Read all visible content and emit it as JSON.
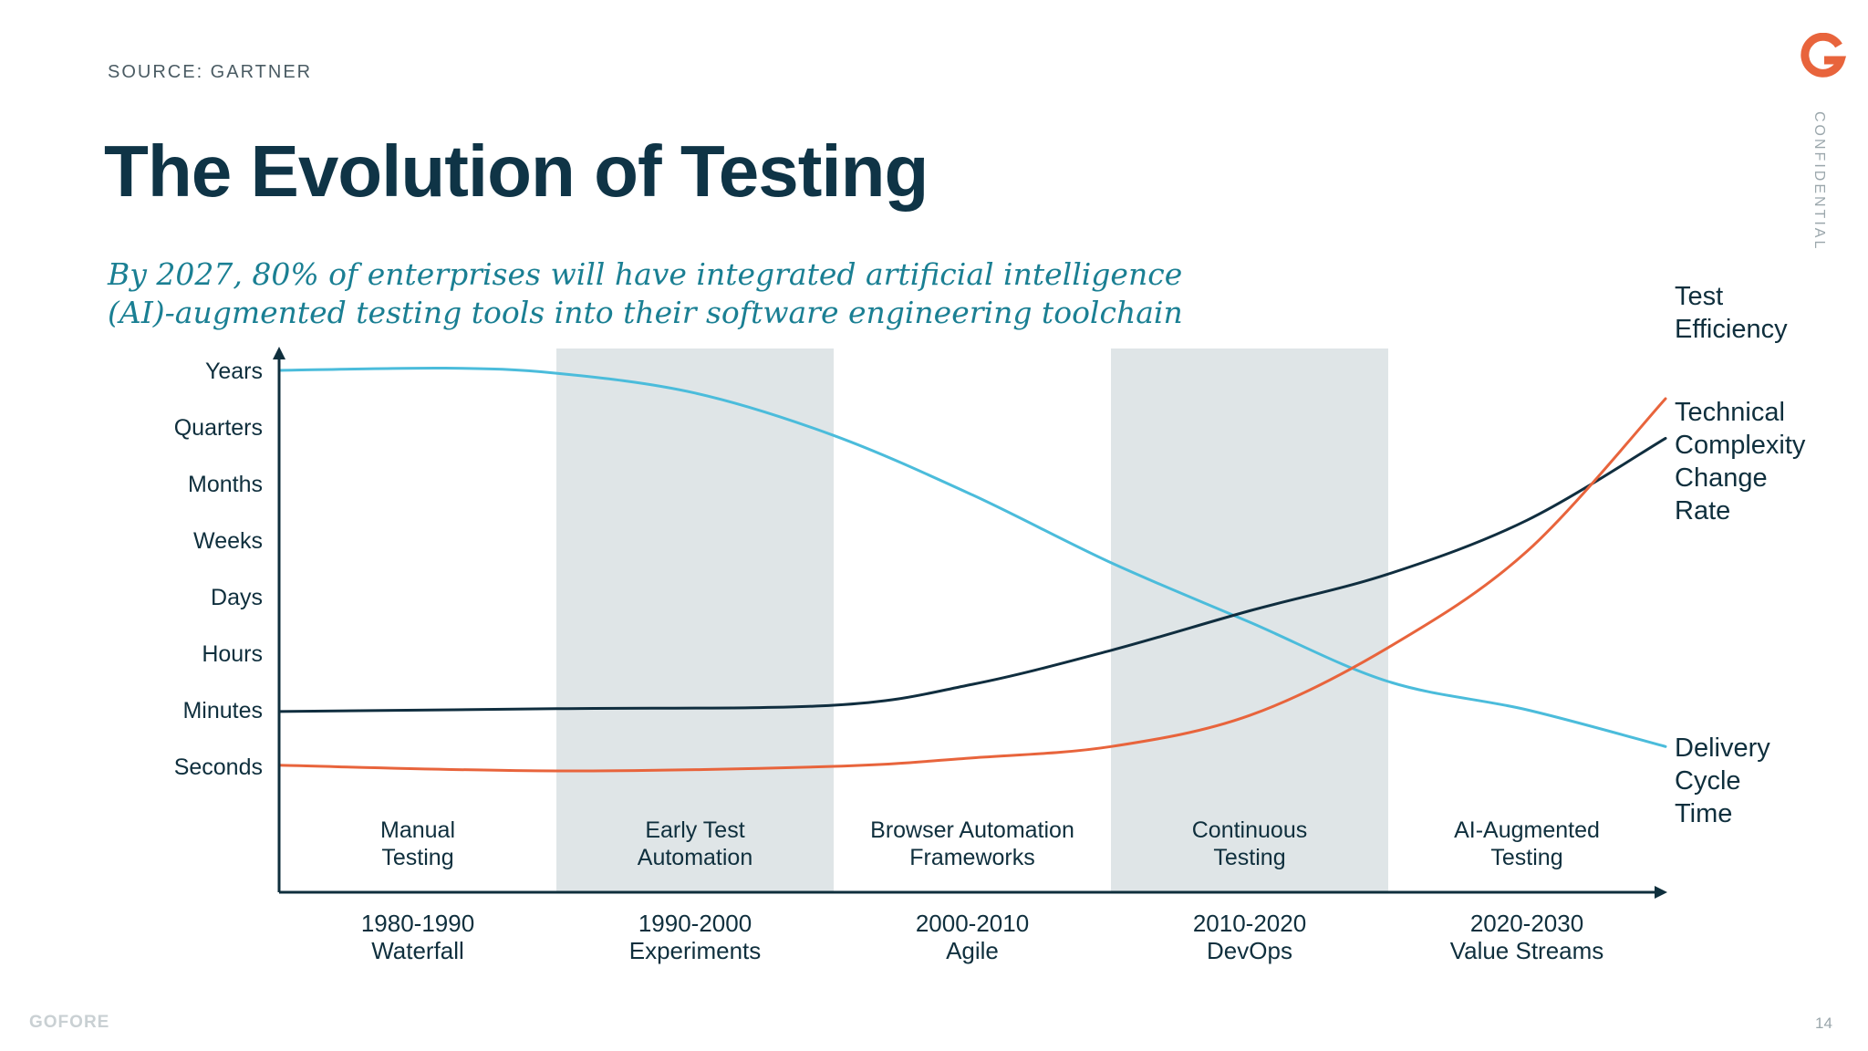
{
  "source": "SOURCE: GARTNER",
  "title": "The Evolution of Testing",
  "subtitle": "By 2027, 80% of enterprises will have integrated artificial intelligence (AI)-augmented testing tools into their software engineering toolchain",
  "confidential": "CONFIDENTIAL",
  "brand": "GOFORE",
  "page_number": "14",
  "colors": {
    "title": "#0f3446",
    "subtitle": "#1a7f93",
    "band": "#dfe5e7",
    "test_efficiency": "#e8643c",
    "technical_complexity": "#102e3f",
    "delivery_cycle_time": "#4bbcdb",
    "axis": "#0f2f3d",
    "logo": "#e8643c"
  },
  "chart_data": {
    "type": "line",
    "title": "The Evolution of Testing",
    "y_categories": [
      "Seconds",
      "Minutes",
      "Hours",
      "Days",
      "Weeks",
      "Months",
      "Quarters",
      "Years"
    ],
    "x_categories": [
      "1980-1990",
      "1990-2000",
      "2000-2010",
      "2010-2020",
      "2020-2030"
    ],
    "x_sublabels": [
      "Waterfall",
      "Experiments",
      "Agile",
      "DevOps",
      "Value Streams"
    ],
    "era_labels": [
      [
        "Manual",
        "Testing"
      ],
      [
        "Early Test",
        "Automation"
      ],
      [
        "Browser Automation",
        "Frameworks"
      ],
      [
        "Continuous",
        "Testing"
      ],
      [
        "AI-Augmented",
        "Testing"
      ]
    ],
    "shaded_eras": [
      1,
      3
    ],
    "x_range": [
      0,
      5
    ],
    "y_range": [
      0,
      7
    ],
    "series": [
      {
        "name": "Delivery Cycle Time",
        "label_lines": [
          "Delivery",
          "Cycle",
          "Time"
        ],
        "color_key": "delivery_cycle_time",
        "points": [
          [
            0,
            7
          ],
          [
            0.6,
            7.04
          ],
          [
            1,
            6.95
          ],
          [
            1.5,
            6.6
          ],
          [
            2,
            5.85
          ],
          [
            2.5,
            4.8
          ],
          [
            3,
            3.6
          ],
          [
            3.5,
            2.55
          ],
          [
            4,
            1.5
          ],
          [
            4.5,
            1
          ],
          [
            5,
            0.35
          ]
        ]
      },
      {
        "name": "Technical Complexity Change Rate",
        "label_lines": [
          "Technical",
          "Complexity",
          "Change",
          "Rate"
        ],
        "color_key": "technical_complexity",
        "points": [
          [
            0,
            0.97
          ],
          [
            1,
            1.02
          ],
          [
            2,
            1.08
          ],
          [
            2.5,
            1.45
          ],
          [
            3,
            2.05
          ],
          [
            3.5,
            2.75
          ],
          [
            4,
            3.4
          ],
          [
            4.5,
            4.35
          ],
          [
            5,
            5.8
          ]
        ]
      },
      {
        "name": "Test Efficiency",
        "label_lines": [
          "Test",
          "Efficiency"
        ],
        "color_key": "test_efficiency",
        "points": [
          [
            0,
            0.02
          ],
          [
            1,
            -0.08
          ],
          [
            2,
            0
          ],
          [
            2.5,
            0.15
          ],
          [
            3,
            0.35
          ],
          [
            3.5,
            0.9
          ],
          [
            4,
            2.1
          ],
          [
            4.5,
            3.8
          ],
          [
            5,
            6.5
          ]
        ]
      }
    ]
  }
}
